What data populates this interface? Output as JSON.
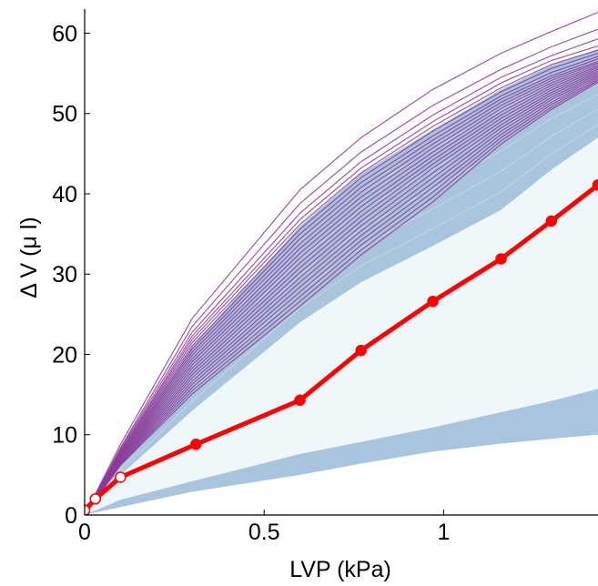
{
  "chart_data": {
    "type": "line",
    "xlabel": "LVP (kPa)",
    "ylabel": "Δ V (μ l)",
    "xlim": [
      0,
      1.43
    ],
    "ylim": [
      0,
      63
    ],
    "xticks": [
      {
        "value": 0,
        "label": "0"
      },
      {
        "value": 0.5,
        "label": "0.5"
      },
      {
        "value": 1,
        "label": "1"
      }
    ],
    "yticks": [
      {
        "value": 0,
        "label": "0"
      },
      {
        "value": 10,
        "label": "10"
      },
      {
        "value": 20,
        "label": "20"
      },
      {
        "value": 30,
        "label": "30"
      },
      {
        "value": 40,
        "label": "40"
      },
      {
        "value": 50,
        "label": "50"
      },
      {
        "value": 60,
        "label": "60"
      }
    ],
    "grid": false,
    "x_grid": [
      0,
      0.1,
      0.3,
      0.6,
      0.77,
      0.97,
      1.16,
      1.3,
      1.43
    ],
    "simulated_envelope": {
      "color_fill": "#eef7fa",
      "upper": [
        0,
        7.5,
        21,
        36,
        42.5,
        48,
        53,
        56,
        58
      ],
      "lower": [
        0,
        1.1,
        3.1,
        5.4,
        6.8,
        8.3,
        9.3,
        9.9,
        10.3
      ]
    },
    "dense_band_upper": {
      "color": "#a9c4dd",
      "upper": [
        0,
        7.3,
        21,
        36,
        42.5,
        48,
        53,
        56,
        58
      ],
      "lower": [
        0,
        5.0,
        13,
        24,
        29,
        33.5,
        38,
        43,
        47
      ]
    },
    "dense_band_lower": {
      "color": "#a9c4dd",
      "upper": [
        0,
        1.9,
        4.2,
        7.6,
        9.1,
        10.9,
        12.8,
        14.2,
        15.7
      ],
      "lower": [
        0,
        1.0,
        2.9,
        5.0,
        6.4,
        7.9,
        8.9,
        9.5,
        10.0
      ]
    },
    "purple_curves": {
      "color": "#8b3a99",
      "series": [
        [
          0,
          8.8,
          24.5,
          40.5,
          47.0,
          53.0,
          57.5,
          60.2,
          62.6
        ],
        [
          0,
          8.4,
          23.5,
          38.8,
          45.2,
          51.0,
          55.5,
          58.3,
          60.5
        ],
        [
          0,
          8.2,
          22.8,
          37.6,
          44.0,
          49.8,
          54.5,
          57.2,
          59.3
        ],
        [
          0,
          8.0,
          22.3,
          36.8,
          43.2,
          49.0,
          53.8,
          56.6,
          58.4
        ],
        [
          0,
          7.9,
          21.9,
          36.2,
          42.6,
          48.4,
          53.2,
          56.1,
          57.9
        ],
        [
          0,
          7.8,
          21.5,
          35.6,
          42.0,
          47.8,
          52.7,
          55.6,
          57.5
        ],
        [
          0,
          7.7,
          21.1,
          35.0,
          41.4,
          47.2,
          52.2,
          55.1,
          57.1
        ],
        [
          0,
          7.6,
          20.7,
          34.4,
          40.8,
          46.7,
          51.8,
          54.7,
          56.8
        ],
        [
          0,
          7.5,
          20.3,
          33.8,
          40.2,
          46.2,
          51.4,
          54.4,
          56.5
        ],
        [
          0,
          7.4,
          19.9,
          33.2,
          39.6,
          45.7,
          51.0,
          54.1,
          56.3
        ],
        [
          0,
          7.3,
          19.5,
          32.6,
          39.0,
          45.2,
          50.6,
          53.8,
          56.1
        ],
        [
          0,
          7.2,
          19.1,
          32.0,
          38.4,
          44.7,
          50.2,
          53.5,
          55.9
        ],
        [
          0,
          7.1,
          18.7,
          31.4,
          37.8,
          44.2,
          49.8,
          53.2,
          55.7
        ],
        [
          0,
          7.0,
          18.3,
          30.8,
          37.2,
          43.7,
          49.4,
          52.9,
          55.5
        ],
        [
          0,
          6.9,
          17.9,
          30.2,
          36.6,
          43.2,
          49.0,
          52.6,
          55.3
        ],
        [
          0,
          6.8,
          17.5,
          29.6,
          36.0,
          42.6,
          48.6,
          52.3,
          55.1
        ],
        [
          0,
          6.7,
          17.1,
          29.0,
          35.4,
          42.0,
          48.2,
          52.0,
          54.9
        ],
        [
          0,
          6.6,
          16.7,
          28.4,
          34.8,
          41.4,
          47.8,
          51.7,
          54.7
        ],
        [
          0,
          6.5,
          16.3,
          27.8,
          34.2,
          40.8,
          47.4,
          51.4,
          54.5
        ],
        [
          0,
          6.4,
          15.9,
          27.2,
          33.6,
          40.2,
          47.0,
          51.1,
          54.3
        ],
        [
          0,
          6.3,
          15.5,
          26.6,
          33.0,
          39.6,
          46.6,
          50.8,
          54.1
        ],
        [
          0,
          6.2,
          15.1,
          26.0,
          32.4,
          39.0,
          46.2,
          50.5,
          53.9
        ]
      ]
    },
    "measured": {
      "color": "#ff0000",
      "x": [
        0.0,
        0.03,
        0.1,
        0.31,
        0.6,
        0.77,
        0.97,
        1.16,
        1.3,
        1.43
      ],
      "y": [
        0.6,
        2.0,
        4.7,
        8.8,
        14.3,
        20.5,
        26.6,
        31.9,
        36.6,
        41.1
      ],
      "open_markers": [
        0,
        1,
        2
      ]
    }
  }
}
